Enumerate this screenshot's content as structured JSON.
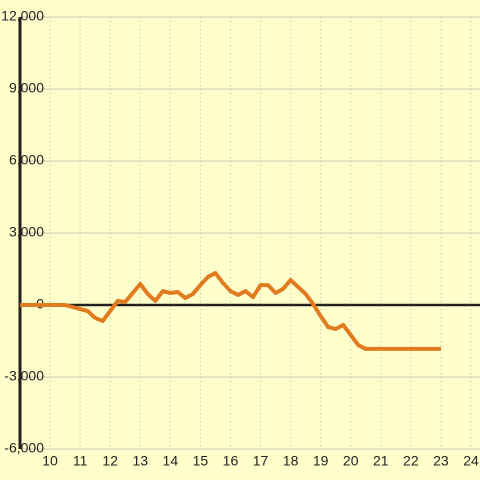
{
  "chart_data": {
    "type": "line",
    "x": [
      9,
      10.5,
      11,
      11.25,
      11.5,
      11.75,
      12,
      12.25,
      12.5,
      12.75,
      13,
      13.25,
      13.5,
      13.75,
      14,
      14.25,
      14.5,
      14.75,
      15,
      15.25,
      15.5,
      15.75,
      16,
      16.25,
      16.5,
      16.75,
      17,
      17.25,
      17.5,
      17.75,
      18,
      18.25,
      18.5,
      18.75,
      19,
      19.25,
      19.5,
      19.75,
      20,
      20.25,
      20.5,
      23
    ],
    "series": [
      {
        "color": "#e07b20",
        "values": [
          0,
          0,
          -170,
          -250,
          -540,
          -670,
          -250,
          170,
          125,
          500,
          875,
          460,
          170,
          580,
          500,
          540,
          290,
          460,
          830,
          1170,
          1330,
          920,
          580,
          420,
          580,
          330,
          830,
          830,
          500,
          670,
          1040,
          750,
          460,
          40,
          -460,
          -920,
          -1000,
          -830,
          -1250,
          -1670,
          -1830,
          -1830
        ]
      }
    ],
    "xlim": [
      9,
      24.3
    ],
    "xticks": [
      10,
      11,
      12,
      13,
      14,
      15,
      16,
      17,
      18,
      19,
      20,
      21,
      22,
      23,
      24
    ],
    "ylim": [
      -6000,
      12000
    ],
    "yticks": [
      {
        "value": -6000,
        "label": "-6,000"
      },
      {
        "value": -3000,
        "label": "-3,000"
      },
      0,
      {
        "value": 3000,
        "label": "3,000"
      },
      {
        "value": 6000,
        "label": "6,000"
      },
      {
        "value": 9000,
        "label": "9,000"
      },
      {
        "value": 12000,
        "label": "12,000"
      }
    ],
    "grid": true
  }
}
